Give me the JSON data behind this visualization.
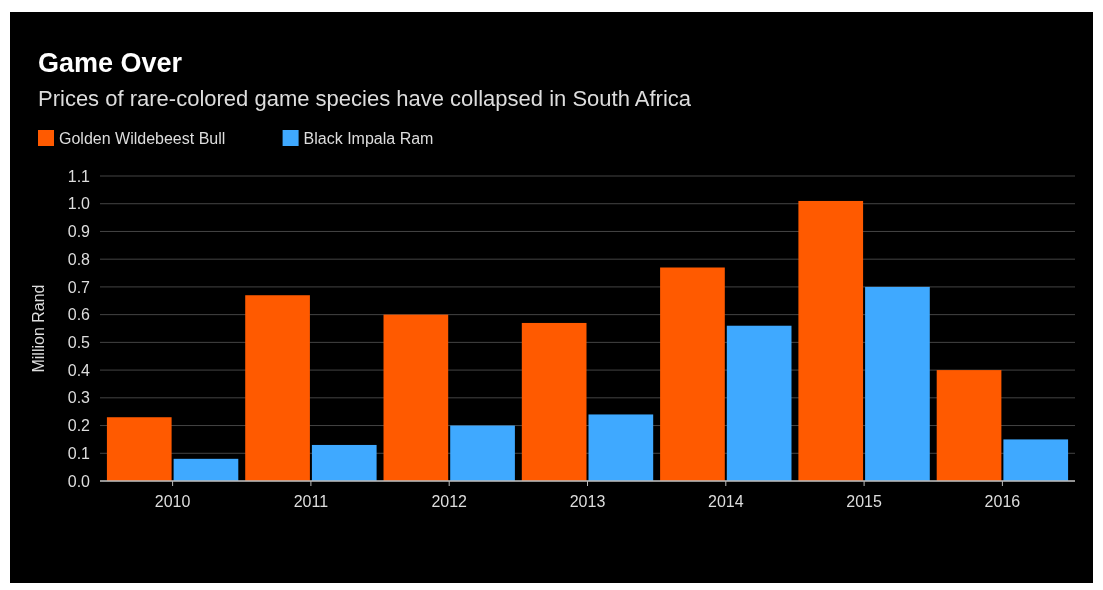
{
  "chart_data": {
    "type": "bar",
    "title": "Game Over",
    "subtitle": "Prices of rare-colored game species have collapsed in South Africa",
    "ylabel": "Million Rand",
    "categories": [
      "2010",
      "2011",
      "2012",
      "2013",
      "2014",
      "2015",
      "2016"
    ],
    "series": [
      {
        "name": "Golden Wildebeest Bull",
        "color": "#ff5a00",
        "values": [
          0.23,
          0.67,
          0.6,
          0.57,
          0.77,
          1.01,
          0.4
        ]
      },
      {
        "name": "Black Impala Ram",
        "color": "#3fa9ff",
        "values": [
          0.08,
          0.13,
          0.2,
          0.24,
          0.56,
          0.7,
          0.15
        ]
      }
    ],
    "ylim": [
      0,
      1.1
    ],
    "yticks": [
      {
        "value": 0,
        "label": "0.0"
      },
      {
        "value": 0.1,
        "label": "0.1"
      },
      {
        "value": 0.2,
        "label": "0.2"
      },
      {
        "value": 0.3,
        "label": "0.3"
      },
      {
        "value": 0.4,
        "label": "0.4"
      },
      {
        "value": 0.5,
        "label": "0.5"
      },
      {
        "value": 0.6,
        "label": "0.6"
      },
      {
        "value": 0.7,
        "label": "0.7"
      },
      {
        "value": 0.8,
        "label": "0.8"
      },
      {
        "value": 0.9,
        "label": "0.9"
      },
      {
        "value": 1.0,
        "label": "1.0"
      },
      {
        "value": 1.1,
        "label": "1.1"
      }
    ],
    "grid": "y",
    "legend": "top left"
  }
}
